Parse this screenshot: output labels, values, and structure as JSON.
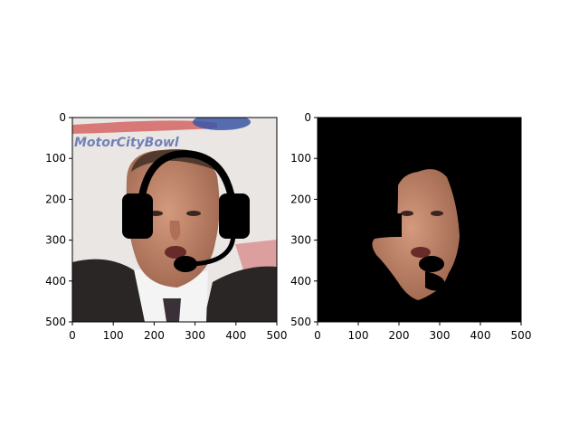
{
  "panels": [
    {
      "id": "left",
      "content": "face-photo-with-headset-overlay",
      "x_ticks": [
        "0",
        "100",
        "200",
        "300",
        "400",
        "500"
      ],
      "y_ticks": [
        "0",
        "100",
        "200",
        "300",
        "400",
        "500"
      ],
      "logo_text": "MotorCityBowl"
    },
    {
      "id": "right",
      "content": "segmented-face-mask-on-black",
      "x_ticks": [
        "0",
        "100",
        "200",
        "300",
        "400",
        "500"
      ],
      "y_ticks": [
        "0",
        "100",
        "200",
        "300",
        "400",
        "500"
      ]
    }
  ],
  "colors": {
    "background_left": "#e9e6e4",
    "suit": "#2a2626",
    "skin": "#c48a6e",
    "mask_background": "#000000",
    "headset": "#000000"
  }
}
